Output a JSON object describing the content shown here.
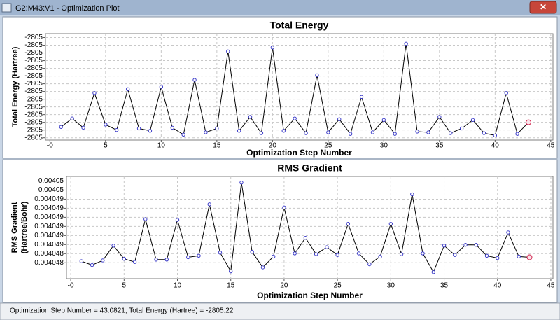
{
  "window": {
    "title": "G2:M43:V1 - Optimization Plot"
  },
  "status": "Optimization Step Number = 43.0821,  Total Energy (Hartree) = -2805.22",
  "chart_data": [
    {
      "type": "line",
      "title": "Total Energy",
      "x_label": "Optimization Step Number",
      "y_label": [
        "Total Energy (Hartree)"
      ],
      "x": [
        1,
        2,
        3,
        4,
        5,
        6,
        7,
        8,
        9,
        10,
        11,
        12,
        13,
        14,
        15,
        16,
        17,
        18,
        19,
        20,
        21,
        22,
        23,
        24,
        25,
        26,
        27,
        28,
        29,
        30,
        31,
        32,
        33,
        34,
        35,
        36,
        37,
        38,
        39,
        40,
        41,
        42,
        43
      ],
      "series": [
        {
          "color": "#000000",
          "marker_color": "#3a3ac8",
          "highlight_color": "#d0204a",
          "values": [
            -2805.226,
            -2805.215,
            -2805.227,
            -2805.182,
            -2805.223,
            -2805.23,
            -2805.177,
            -2805.228,
            -2805.231,
            -2805.174,
            -2805.227,
            -2805.236,
            -2805.165,
            -2805.233,
            -2805.228,
            -2805.128,
            -2805.231,
            -2805.213,
            -2805.234,
            -2805.123,
            -2805.231,
            -2805.215,
            -2805.234,
            -2805.159,
            -2805.233,
            -2805.216,
            -2805.235,
            -2805.187,
            -2805.233,
            -2805.217,
            -2805.235,
            -2805.118,
            -2805.232,
            -2805.233,
            -2805.213,
            -2805.234,
            -2805.228,
            -2805.217,
            -2805.234,
            -2805.237,
            -2805.182,
            -2805.235,
            -2805.22
          ]
        }
      ],
      "xlim": [
        -0.4,
        45.2
      ],
      "xticks": [
        {
          "value": 0,
          "label": "-0"
        },
        5,
        10,
        15,
        20,
        25,
        30,
        35,
        40,
        45
      ],
      "ylim": [
        -2805.243,
        -2805.105
      ],
      "yticks": [
        {
          "value": -2805.24,
          "label": "-2805"
        },
        {
          "value": -2805.23,
          "label": "-2805"
        },
        {
          "value": -2805.22,
          "label": "-2805"
        },
        {
          "value": -2805.21,
          "label": "-2805"
        },
        {
          "value": -2805.2,
          "label": "-2805"
        },
        {
          "value": -2805.19,
          "label": "-2805"
        },
        {
          "value": -2805.18,
          "label": "-2805"
        },
        {
          "value": -2805.17,
          "label": "-2805"
        },
        {
          "value": -2805.16,
          "label": "-2805"
        },
        {
          "value": -2805.15,
          "label": "-2805"
        },
        {
          "value": -2805.14,
          "label": "-2805"
        },
        {
          "value": -2805.13,
          "label": "-2805"
        },
        {
          "value": -2805.12,
          "label": "-2805"
        },
        {
          "value": -2805.11,
          "label": "-2805"
        }
      ],
      "grid": true
    },
    {
      "type": "line",
      "title": "RMS Gradient",
      "x_label": "Optimization Step Number",
      "y_label": [
        "RMS Gradient",
        "(Hartree/Bohr)"
      ],
      "x": [
        1,
        2,
        3,
        4,
        5,
        6,
        7,
        8,
        9,
        10,
        11,
        12,
        13,
        14,
        15,
        16,
        17,
        18,
        19,
        20,
        21,
        22,
        23,
        24,
        25,
        26,
        27,
        28,
        29,
        30,
        31,
        32,
        33,
        34,
        35,
        36,
        37,
        38,
        39,
        40,
        41,
        42,
        43
      ],
      "series": [
        {
          "color": "#000000",
          "marker_color": "#3a3ac8",
          "highlight_color": "#d0204a",
          "values": [
            0.004048184,
            0.004048099,
            0.004048201,
            0.004048527,
            0.004048236,
            0.004048167,
            0.00404911,
            0.004048219,
            0.004048219,
            0.004049093,
            0.00404827,
            0.004048304,
            0.004049436,
            0.004048373,
            0.004047961,
            0.004049915,
            0.00404839,
            0.004048047,
            0.004048287,
            0.004049367,
            0.004048356,
            0.004048698,
            0.004048339,
            0.004048493,
            0.004048321,
            0.004049007,
            0.004048356,
            0.004048116,
            0.004048287,
            0.004049007,
            0.004048339,
            0.004049658,
            0.004048356,
            0.004047944,
            0.004048527,
            0.004048321,
            0.004048544,
            0.004048544,
            0.004048304,
            0.004048253,
            0.004048818,
            0.004048287,
            0.00404827
          ]
        }
      ],
      "xlim": [
        -0.4,
        45.2
      ],
      "xticks": [
        {
          "value": 0,
          "label": "-0"
        },
        5,
        10,
        15,
        20,
        25,
        30,
        35,
        40,
        45
      ],
      "ylim": [
        0.0040478,
        0.00405005
      ],
      "yticks": [
        {
          "value": 0.00404815,
          "label": "0.004048"
        },
        {
          "value": 0.00404835,
          "label": "0.004048"
        },
        {
          "value": 0.00404855,
          "label": "0.004049"
        },
        {
          "value": 0.00404875,
          "label": "0.004049"
        },
        {
          "value": 0.00404895,
          "label": "0.004049"
        },
        {
          "value": 0.00404915,
          "label": "0.004049"
        },
        {
          "value": 0.00404935,
          "label": "0.004049"
        },
        {
          "value": 0.00404955,
          "label": "0.004049"
        },
        {
          "value": 0.00404975,
          "label": "0.00405"
        },
        {
          "value": 0.00404995,
          "label": "0.00405"
        }
      ],
      "grid": true
    }
  ]
}
